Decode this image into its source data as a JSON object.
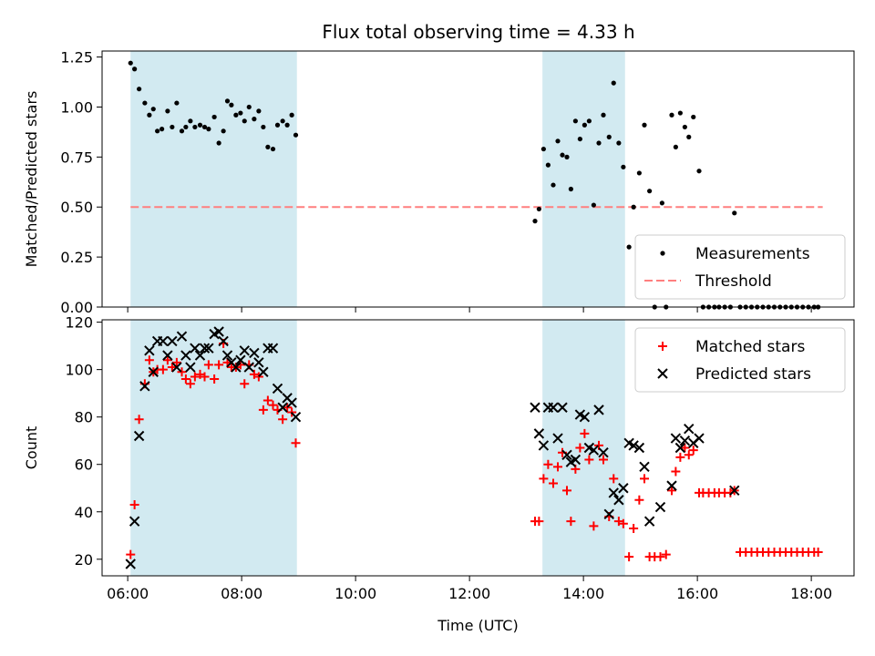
{
  "title": "Flux total observing time = 4.33 h",
  "colors": {
    "span": "#add8e6",
    "measurement": "#000000",
    "threshold": "#ff7f7f",
    "matched": "#ff0000",
    "predicted": "#000000"
  },
  "chart_data": [
    {
      "type": "scatter",
      "ylabel": "Matched/Predicted stars",
      "ylim": [
        0,
        1.28
      ],
      "xlim": [
        5.55,
        18.75
      ],
      "yticks": [
        0,
        0.25,
        0.5,
        0.75,
        1.0,
        1.25
      ],
      "ytick_labels": [
        "0.00",
        "0.25",
        "0.50",
        "0.75",
        "1.00",
        "1.25"
      ],
      "shaded_spans": [
        [
          6.05,
          8.97
        ],
        [
          13.28,
          14.73
        ]
      ],
      "threshold": {
        "label": "Threshold",
        "value": 0.5,
        "x_range": [
          6.05,
          18.2
        ]
      },
      "legend": {
        "position": "lower-right",
        "entries": [
          "Measurements",
          "Threshold"
        ]
      },
      "series": [
        {
          "name": "Measurements",
          "points": [
            [
              6.05,
              1.22
            ],
            [
              6.12,
              1.19
            ],
            [
              6.2,
              1.09
            ],
            [
              6.3,
              1.02
            ],
            [
              6.38,
              0.96
            ],
            [
              6.45,
              0.99
            ],
            [
              6.52,
              0.88
            ],
            [
              6.6,
              0.89
            ],
            [
              6.7,
              0.98
            ],
            [
              6.78,
              0.9
            ],
            [
              6.86,
              1.02
            ],
            [
              6.95,
              0.88
            ],
            [
              7.02,
              0.9
            ],
            [
              7.1,
              0.93
            ],
            [
              7.18,
              0.9
            ],
            [
              7.27,
              0.91
            ],
            [
              7.35,
              0.9
            ],
            [
              7.42,
              0.89
            ],
            [
              7.52,
              0.95
            ],
            [
              7.6,
              0.82
            ],
            [
              7.68,
              0.88
            ],
            [
              7.75,
              1.03
            ],
            [
              7.82,
              1.01
            ],
            [
              7.9,
              0.96
            ],
            [
              7.98,
              0.97
            ],
            [
              8.05,
              0.93
            ],
            [
              8.13,
              1.0
            ],
            [
              8.22,
              0.94
            ],
            [
              8.3,
              0.98
            ],
            [
              8.38,
              0.9
            ],
            [
              8.46,
              0.8
            ],
            [
              8.55,
              0.79
            ],
            [
              8.63,
              0.91
            ],
            [
              8.72,
              0.93
            ],
            [
              8.8,
              0.91
            ],
            [
              8.88,
              0.96
            ],
            [
              8.95,
              0.86
            ],
            [
              13.15,
              0.43
            ],
            [
              13.22,
              0.49
            ],
            [
              13.3,
              0.79
            ],
            [
              13.38,
              0.71
            ],
            [
              13.47,
              0.61
            ],
            [
              13.55,
              0.83
            ],
            [
              13.63,
              0.76
            ],
            [
              13.71,
              0.75
            ],
            [
              13.78,
              0.59
            ],
            [
              13.86,
              0.93
            ],
            [
              13.94,
              0.84
            ],
            [
              14.02,
              0.91
            ],
            [
              14.1,
              0.93
            ],
            [
              14.18,
              0.51
            ],
            [
              14.27,
              0.82
            ],
            [
              14.35,
              0.96
            ],
            [
              14.45,
              0.85
            ],
            [
              14.53,
              1.12
            ],
            [
              14.62,
              0.82
            ],
            [
              14.7,
              0.7
            ],
            [
              14.8,
              0.3
            ],
            [
              14.88,
              0.5
            ],
            [
              14.98,
              0.67
            ],
            [
              15.07,
              0.91
            ],
            [
              15.16,
              0.58
            ],
            [
              15.25,
              0.0
            ],
            [
              15.38,
              0.52
            ],
            [
              15.45,
              0.0
            ],
            [
              15.55,
              0.96
            ],
            [
              15.62,
              0.8
            ],
            [
              15.7,
              0.97
            ],
            [
              15.78,
              0.9
            ],
            [
              15.85,
              0.85
            ],
            [
              15.93,
              0.95
            ],
            [
              16.03,
              0.68
            ],
            [
              16.1,
              0.0
            ],
            [
              16.2,
              0.0
            ],
            [
              16.3,
              0.0
            ],
            [
              16.38,
              0.0
            ],
            [
              16.48,
              0.0
            ],
            [
              16.58,
              0.0
            ],
            [
              16.65,
              0.47
            ],
            [
              16.75,
              0.0
            ],
            [
              16.85,
              0.0
            ],
            [
              16.95,
              0.0
            ],
            [
              17.05,
              0.0
            ],
            [
              17.15,
              0.0
            ],
            [
              17.25,
              0.0
            ],
            [
              17.35,
              0.0
            ],
            [
              17.45,
              0.0
            ],
            [
              17.55,
              0.0
            ],
            [
              17.65,
              0.0
            ],
            [
              17.75,
              0.0
            ],
            [
              17.85,
              0.0
            ],
            [
              17.95,
              0.0
            ],
            [
              18.05,
              0.0
            ],
            [
              18.12,
              0.0
            ]
          ]
        }
      ]
    },
    {
      "type": "scatter",
      "xlabel": "Time (UTC)",
      "ylabel": "Count",
      "ylim": [
        13,
        121
      ],
      "xlim": [
        5.55,
        18.75
      ],
      "yticks": [
        20,
        40,
        60,
        80,
        100,
        120
      ],
      "ytick_labels": [
        "20",
        "40",
        "60",
        "80",
        "100",
        "120"
      ],
      "xticks": [
        6,
        8,
        10,
        12,
        14,
        16,
        18
      ],
      "xtick_labels": [
        "06:00",
        "08:00",
        "10:00",
        "12:00",
        "14:00",
        "16:00",
        "18:00"
      ],
      "shaded_spans": [
        [
          6.05,
          8.97
        ],
        [
          13.28,
          14.73
        ]
      ],
      "legend": {
        "position": "upper-right",
        "entries": [
          "Matched stars",
          "Predicted stars"
        ]
      },
      "series": [
        {
          "name": "Matched stars",
          "points": [
            [
              6.05,
              22
            ],
            [
              6.12,
              43
            ],
            [
              6.2,
              79
            ],
            [
              6.3,
              94
            ],
            [
              6.38,
              104
            ],
            [
              6.45,
              99
            ],
            [
              6.52,
              100
            ],
            [
              6.62,
              100
            ],
            [
              6.7,
              104
            ],
            [
              6.78,
              101
            ],
            [
              6.86,
              103
            ],
            [
              6.95,
              99
            ],
            [
              7.02,
              96
            ],
            [
              7.1,
              94
            ],
            [
              7.18,
              97
            ],
            [
              7.27,
              98
            ],
            [
              7.35,
              97
            ],
            [
              7.42,
              102
            ],
            [
              7.52,
              96
            ],
            [
              7.6,
              102
            ],
            [
              7.68,
              111
            ],
            [
              7.75,
              103
            ],
            [
              7.82,
              101
            ],
            [
              7.9,
              101
            ],
            [
              7.98,
              102
            ],
            [
              8.05,
              94
            ],
            [
              8.13,
              102
            ],
            [
              8.22,
              98
            ],
            [
              8.3,
              97
            ],
            [
              8.38,
              83
            ],
            [
              8.46,
              87
            ],
            [
              8.55,
              85
            ],
            [
              8.63,
              83
            ],
            [
              8.72,
              79
            ],
            [
              8.8,
              84
            ],
            [
              8.88,
              82
            ],
            [
              8.95,
              69
            ],
            [
              13.15,
              36
            ],
            [
              13.22,
              36
            ],
            [
              13.3,
              54
            ],
            [
              13.38,
              60
            ],
            [
              13.47,
              52
            ],
            [
              13.55,
              59
            ],
            [
              13.63,
              65
            ],
            [
              13.71,
              49
            ],
            [
              13.78,
              36
            ],
            [
              13.86,
              58
            ],
            [
              13.94,
              67
            ],
            [
              14.02,
              73
            ],
            [
              14.1,
              62
            ],
            [
              14.18,
              34
            ],
            [
              14.27,
              68
            ],
            [
              14.35,
              62
            ],
            [
              14.45,
              38
            ],
            [
              14.53,
              54
            ],
            [
              14.62,
              36
            ],
            [
              14.7,
              35
            ],
            [
              14.8,
              21
            ],
            [
              14.88,
              33
            ],
            [
              14.98,
              45
            ],
            [
              15.07,
              54
            ],
            [
              15.16,
              21
            ],
            [
              15.25,
              21
            ],
            [
              15.35,
              21
            ],
            [
              15.45,
              22
            ],
            [
              15.55,
              49
            ],
            [
              15.62,
              57
            ],
            [
              15.7,
              63
            ],
            [
              15.78,
              67
            ],
            [
              15.85,
              64
            ],
            [
              15.93,
              66
            ],
            [
              16.03,
              48
            ],
            [
              16.1,
              48
            ],
            [
              16.2,
              48
            ],
            [
              16.3,
              48
            ],
            [
              16.38,
              48
            ],
            [
              16.48,
              48
            ],
            [
              16.58,
              48
            ],
            [
              16.65,
              49
            ],
            [
              16.75,
              23
            ],
            [
              16.85,
              23
            ],
            [
              16.95,
              23
            ],
            [
              17.05,
              23
            ],
            [
              17.15,
              23
            ],
            [
              17.25,
              23
            ],
            [
              17.35,
              23
            ],
            [
              17.45,
              23
            ],
            [
              17.55,
              23
            ],
            [
              17.65,
              23
            ],
            [
              17.75,
              23
            ],
            [
              17.85,
              23
            ],
            [
              17.95,
              23
            ],
            [
              18.05,
              23
            ],
            [
              18.12,
              23
            ]
          ]
        },
        {
          "name": "Predicted stars",
          "points": [
            [
              6.05,
              18
            ],
            [
              6.12,
              36
            ],
            [
              6.2,
              72
            ],
            [
              6.3,
              93
            ],
            [
              6.38,
              108
            ],
            [
              6.45,
              99
            ],
            [
              6.52,
              112
            ],
            [
              6.62,
              112
            ],
            [
              6.7,
              106
            ],
            [
              6.78,
              112
            ],
            [
              6.86,
              101
            ],
            [
              6.95,
              114
            ],
            [
              7.02,
              106
            ],
            [
              7.1,
              101
            ],
            [
              7.18,
              109
            ],
            [
              7.27,
              106
            ],
            [
              7.35,
              109
            ],
            [
              7.42,
              109
            ],
            [
              7.52,
              115
            ],
            [
              7.6,
              116
            ],
            [
              7.68,
              112
            ],
            [
              7.75,
              106
            ],
            [
              7.82,
              103
            ],
            [
              7.9,
              101
            ],
            [
              7.98,
              104
            ],
            [
              8.05,
              108
            ],
            [
              8.13,
              101
            ],
            [
              8.22,
              107
            ],
            [
              8.3,
              103
            ],
            [
              8.38,
              99
            ],
            [
              8.46,
              109
            ],
            [
              8.55,
              109
            ],
            [
              8.63,
              92
            ],
            [
              8.72,
              84
            ],
            [
              8.8,
              88
            ],
            [
              8.88,
              86
            ],
            [
              8.95,
              80
            ],
            [
              13.15,
              84
            ],
            [
              13.22,
              73
            ],
            [
              13.3,
              68
            ],
            [
              13.38,
              84
            ],
            [
              13.47,
              84
            ],
            [
              13.55,
              71
            ],
            [
              13.63,
              84
            ],
            [
              13.71,
              64
            ],
            [
              13.78,
              61
            ],
            [
              13.86,
              62
            ],
            [
              13.94,
              81
            ],
            [
              14.02,
              80
            ],
            [
              14.1,
              67
            ],
            [
              14.18,
              66
            ],
            [
              14.27,
              83
            ],
            [
              14.35,
              65
            ],
            [
              14.45,
              39
            ],
            [
              14.53,
              48
            ],
            [
              14.62,
              45
            ],
            [
              14.7,
              50
            ],
            [
              14.8,
              69
            ],
            [
              14.88,
              68
            ],
            [
              14.98,
              67
            ],
            [
              15.07,
              59
            ],
            [
              15.16,
              36
            ],
            [
              15.35,
              42
            ],
            [
              15.55,
              51
            ],
            [
              15.62,
              71
            ],
            [
              15.7,
              67
            ],
            [
              15.78,
              70
            ],
            [
              15.85,
              75
            ],
            [
              15.93,
              69
            ],
            [
              16.03,
              71
            ],
            [
              16.65,
              49
            ]
          ]
        }
      ]
    }
  ]
}
